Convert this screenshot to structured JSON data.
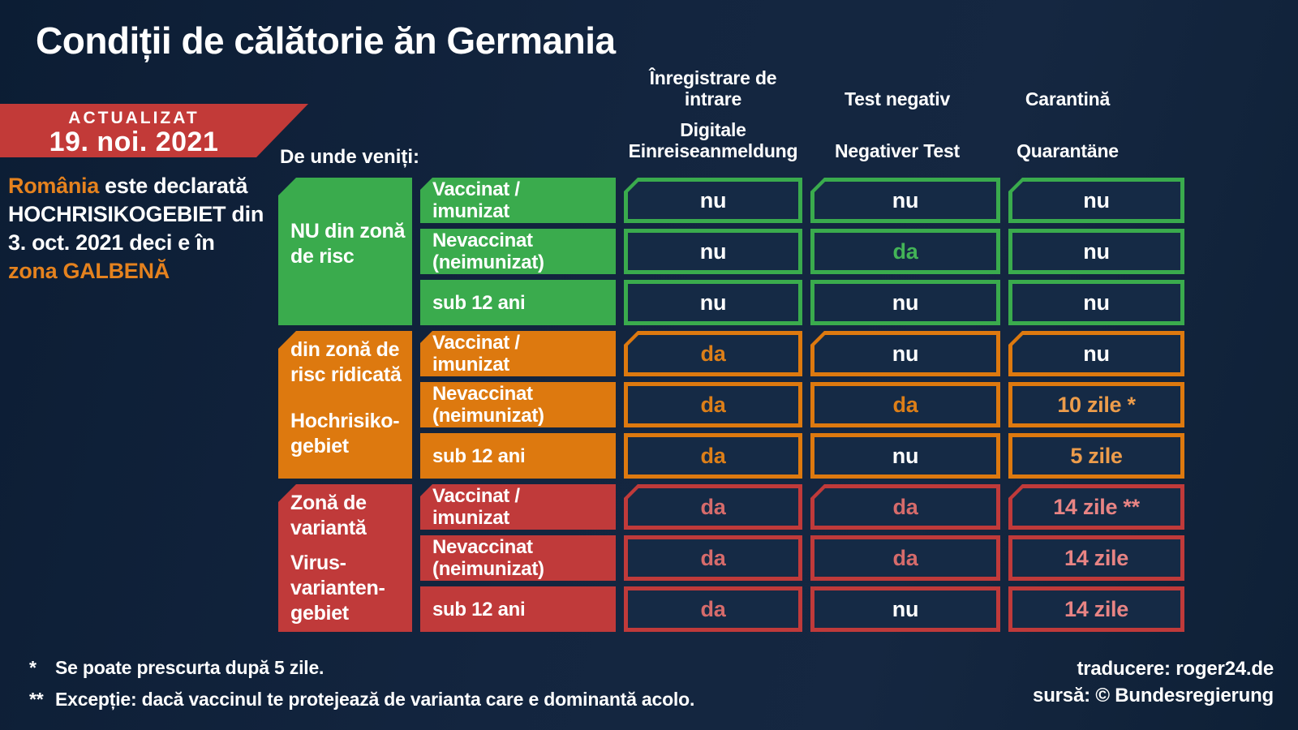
{
  "title": "Condiții de călătorie ăn Germania",
  "banner": {
    "label": "ACTUALIZAT",
    "date": "19. noi. 2021"
  },
  "note": {
    "line1_highlight": "România",
    "line1_rest": " este declarată",
    "line2": "HOCHRISIKOGEBIET din",
    "line3": "3. oct. 2021 deci e în",
    "line4": "zona GALBENĂ"
  },
  "origin_label": "De unde veniți:",
  "columns": [
    {
      "ro1": "Înregistrare de",
      "ro2": "intrare",
      "de1": "Digitale",
      "de2": "Einreiseanmeldung"
    },
    {
      "ro1": "",
      "ro2": "Test negativ",
      "de1": "",
      "de2": "Negativer Test"
    },
    {
      "ro1": "",
      "ro2": "Carantină",
      "de1": "",
      "de2": "Quarantäne"
    }
  ],
  "table": {
    "sections": [
      {
        "name": "no-risk-zone",
        "zone": {
          "l1": "NU din zonă",
          "l2": "de risc",
          "l3": "",
          "l4": "",
          "l5": ""
        },
        "rows": [
          {
            "label1": "Vaccinat /",
            "label2": "imunizat",
            "cells": [
              {
                "text": "nu",
                "tone": "white"
              },
              {
                "text": "nu",
                "tone": "white"
              },
              {
                "text": "nu",
                "tone": "white"
              }
            ]
          },
          {
            "label1": "Nevaccinat",
            "label2": "(neimunizat)",
            "cells": [
              {
                "text": "nu",
                "tone": "white"
              },
              {
                "text": "da",
                "tone": "green"
              },
              {
                "text": "nu",
                "tone": "white"
              }
            ]
          },
          {
            "label1": "sub 12 ani",
            "label2": "",
            "cells": [
              {
                "text": "nu",
                "tone": "white"
              },
              {
                "text": "nu",
                "tone": "white"
              },
              {
                "text": "nu",
                "tone": "white"
              }
            ]
          }
        ]
      },
      {
        "name": "high-risk-zone",
        "zone": {
          "l1": "din zonă de",
          "l2": "risc ridicată",
          "l3": "Hochrisiko-",
          "l4": "gebiet",
          "l5": ""
        },
        "rows": [
          {
            "label1": "Vaccinat /",
            "label2": "imunizat",
            "cells": [
              {
                "text": "da",
                "tone": "orange"
              },
              {
                "text": "nu",
                "tone": "white"
              },
              {
                "text": "nu",
                "tone": "white"
              }
            ]
          },
          {
            "label1": "Nevaccinat",
            "label2": "(neimunizat)",
            "cells": [
              {
                "text": "da",
                "tone": "orange"
              },
              {
                "text": "da",
                "tone": "orange"
              },
              {
                "text": "10 zile *",
                "tone": "orange-light"
              }
            ]
          },
          {
            "label1": "sub 12 ani",
            "label2": "",
            "cells": [
              {
                "text": "da",
                "tone": "orange"
              },
              {
                "text": "nu",
                "tone": "white"
              },
              {
                "text": "5 zile",
                "tone": "orange-light"
              }
            ]
          }
        ]
      },
      {
        "name": "virus-variant-zone",
        "zone": {
          "l1": "Zonă de",
          "l2": "variantă",
          "l3": "Virus-",
          "l4": "varianten-",
          "l5": "gebiet"
        },
        "rows": [
          {
            "label1": "Vaccinat /",
            "label2": "imunizat",
            "cells": [
              {
                "text": "da",
                "tone": "red"
              },
              {
                "text": "da",
                "tone": "red"
              },
              {
                "text": "14 zile **",
                "tone": "red-light"
              }
            ]
          },
          {
            "label1": "Nevaccinat",
            "label2": "(neimunizat)",
            "cells": [
              {
                "text": "da",
                "tone": "red"
              },
              {
                "text": "da",
                "tone": "red"
              },
              {
                "text": "14 zile",
                "tone": "red-light"
              }
            ]
          },
          {
            "label1": "sub 12 ani",
            "label2": "",
            "cells": [
              {
                "text": "da",
                "tone": "red"
              },
              {
                "text": "nu",
                "tone": "white"
              },
              {
                "text": "14 zile",
                "tone": "red-light"
              }
            ]
          }
        ]
      }
    ]
  },
  "footnotes": [
    {
      "mark": "*",
      "text": "Se poate prescurta după 5 zile."
    },
    {
      "mark": "**",
      "text": "Excepție: dacă vaccinul te protejează de varianta care e dominantă acolo."
    }
  ],
  "credits": {
    "line1": "traducere: roger24.de",
    "line2": "sursă: © Bundesregierung"
  },
  "colors": {
    "background": "#13253f",
    "green": "#3aab4d",
    "orange": "#dd790f",
    "red": "#c03a3a",
    "banner_red": "#c23a38",
    "accent_orange_text": "#e5821e",
    "cell_background": "#152a45",
    "tone_green": "#43b457",
    "tone_orange": "#dd7f18",
    "tone_orange_light": "#ec9c4b",
    "tone_red": "#d66b6b",
    "tone_red_light": "#e88484"
  }
}
